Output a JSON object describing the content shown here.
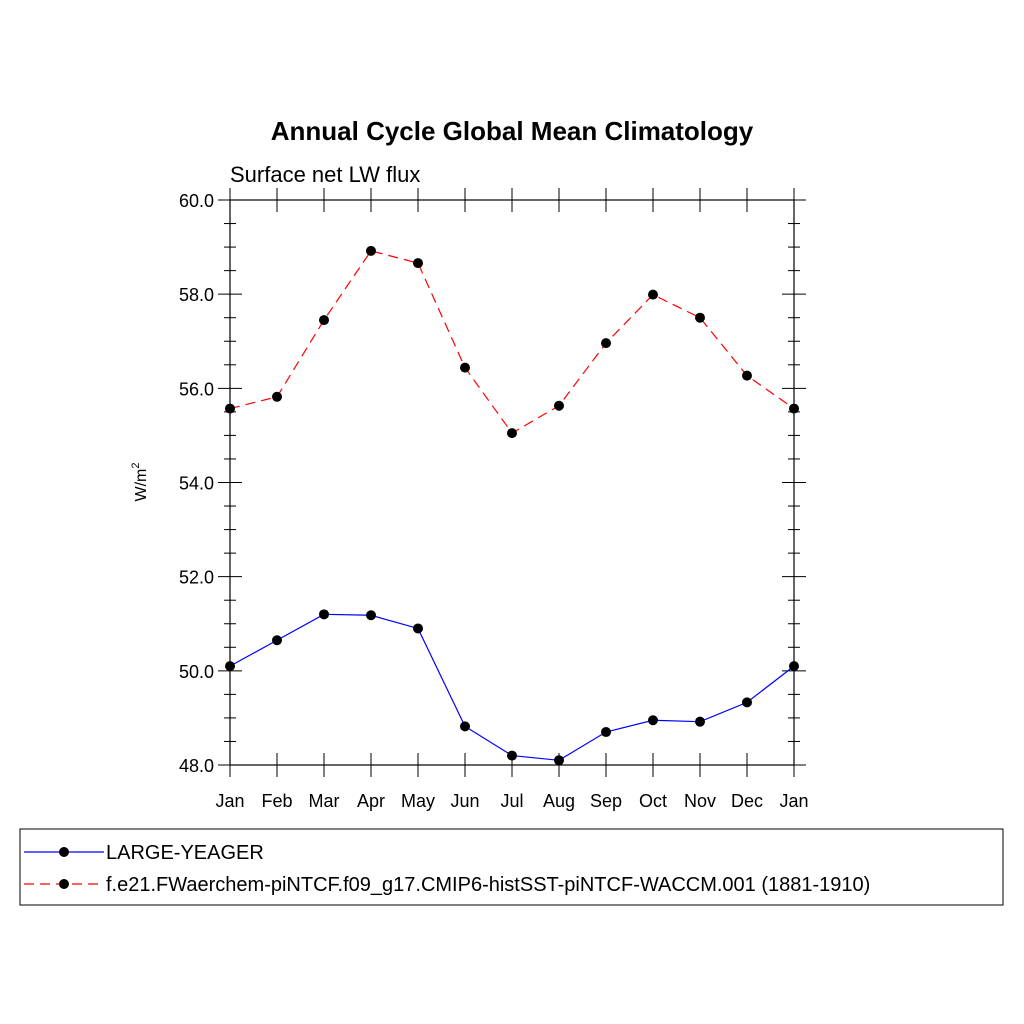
{
  "chart_data": {
    "type": "line",
    "title": "Annual Cycle Global Mean Climatology",
    "subtitle": "Surface net LW flux",
    "ylabel": "W/m",
    "ylabel_superscript": "2",
    "xlabel": "",
    "categories": [
      "Jan",
      "Feb",
      "Mar",
      "Apr",
      "May",
      "Jun",
      "Jul",
      "Aug",
      "Sep",
      "Oct",
      "Nov",
      "Dec",
      "Jan"
    ],
    "ylim": [
      48.0,
      60.0
    ],
    "yticks": [
      "48.0",
      "50.0",
      "52.0",
      "54.0",
      "56.0",
      "58.0",
      "60.0"
    ],
    "grid": false,
    "legend_position": "bottom",
    "series": [
      {
        "name": "LARGE-YEAGER",
        "color": "#0000ff",
        "line_style": "solid",
        "marker": "filled-circle",
        "values": [
          50.1,
          50.65,
          51.2,
          51.18,
          50.9,
          48.82,
          48.2,
          48.1,
          48.7,
          48.95,
          48.92,
          49.33,
          50.1
        ]
      },
      {
        "name": "f.e21.FWaerchem-piNTCF.f09_g17.CMIP6-histSST-piNTCF-WACCM.001 (1881-1910)",
        "color": "#ff0000",
        "line_style": "dashed",
        "marker": "filled-circle",
        "values": [
          55.57,
          55.82,
          57.45,
          58.92,
          58.66,
          56.44,
          55.05,
          55.63,
          56.96,
          57.99,
          57.5,
          56.27,
          55.57
        ]
      }
    ]
  }
}
